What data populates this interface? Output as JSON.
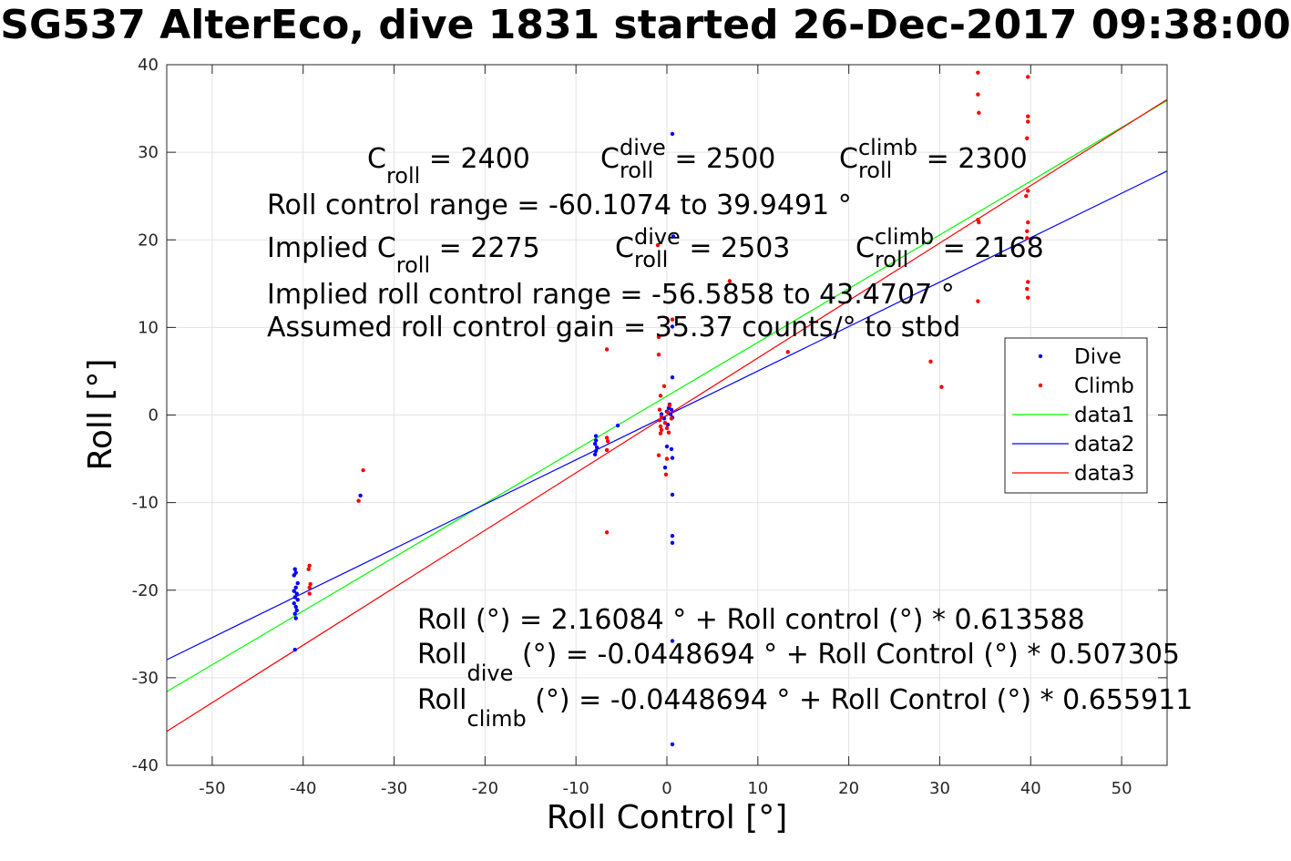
{
  "chart_data": {
    "type": "scatter",
    "title": "SG537 AlterEco, dive 1831 started 26-Dec-2017 09:38:00",
    "xlabel": "Roll Control [°]",
    "ylabel": "Roll [°]",
    "xlim": [
      -55,
      55
    ],
    "ylim": [
      -40,
      40
    ],
    "xticks": [
      -50,
      -40,
      -30,
      -20,
      -10,
      0,
      10,
      20,
      30,
      40,
      50
    ],
    "yticks": [
      -40,
      -30,
      -20,
      -10,
      0,
      10,
      20,
      30,
      40
    ],
    "grid": true,
    "legend_position": "east",
    "series": [
      {
        "name": "Dive",
        "kind": "points",
        "color": "#0000ff",
        "points": [
          [
            -40.9,
            -17.6
          ],
          [
            -40.8,
            -18.0
          ],
          [
            -41.0,
            -18.3
          ],
          [
            -40.6,
            -19.2
          ],
          [
            -40.8,
            -19.7
          ],
          [
            -41.0,
            -20.1
          ],
          [
            -40.7,
            -20.4
          ],
          [
            -40.9,
            -20.8
          ],
          [
            -40.6,
            -21.1
          ],
          [
            -41.0,
            -21.5
          ],
          [
            -40.8,
            -21.9
          ],
          [
            -40.7,
            -22.3
          ],
          [
            -40.9,
            -22.7
          ],
          [
            -40.8,
            -23.2
          ],
          [
            -40.9,
            -26.8
          ],
          [
            -33.7,
            -9.2
          ],
          [
            -7.8,
            -2.4
          ],
          [
            -7.8,
            -2.9
          ],
          [
            -7.9,
            -3.3
          ],
          [
            -7.7,
            -3.7
          ],
          [
            -7.8,
            -4.1
          ],
          [
            -7.9,
            -4.5
          ],
          [
            -5.4,
            -1.2
          ],
          [
            -0.6,
            0.1
          ],
          [
            -0.3,
            -0.4
          ],
          [
            0.0,
            0.4
          ],
          [
            0.2,
            0.8
          ],
          [
            0.4,
            0.1
          ],
          [
            0.6,
            -0.3
          ],
          [
            0.3,
            1.2
          ],
          [
            0.1,
            -1.1
          ],
          [
            0.5,
            0.6
          ],
          [
            0.0,
            -3.6
          ],
          [
            0.5,
            -3.9
          ],
          [
            0.6,
            -4.9
          ],
          [
            -0.2,
            -6.0
          ],
          [
            0.6,
            -9.1
          ],
          [
            0.6,
            4.3
          ],
          [
            0.6,
            10.1
          ],
          [
            0.7,
            20.4
          ],
          [
            0.6,
            32.1
          ],
          [
            0.6,
            -13.8
          ],
          [
            0.6,
            -14.6
          ],
          [
            0.6,
            -25.8
          ],
          [
            0.6,
            -37.6
          ]
        ]
      },
      {
        "name": "Climb",
        "kind": "points",
        "color": "#ff0000",
        "points": [
          [
            -39.3,
            -17.2
          ],
          [
            -39.4,
            -17.6
          ],
          [
            -39.2,
            -19.3
          ],
          [
            -39.3,
            -19.7
          ],
          [
            -39.3,
            -20.4
          ],
          [
            -33.9,
            -9.8
          ],
          [
            -33.4,
            -6.3
          ],
          [
            -6.6,
            7.5
          ],
          [
            -6.6,
            -2.6
          ],
          [
            -6.5,
            -3.0
          ],
          [
            -6.6,
            -4.0
          ],
          [
            -6.6,
            -13.4
          ],
          [
            -1.0,
            19.4
          ],
          [
            -0.9,
            8.9
          ],
          [
            -0.9,
            6.9
          ],
          [
            -0.7,
            2.2
          ],
          [
            -0.8,
            0.6
          ],
          [
            -0.6,
            -0.2
          ],
          [
            -0.8,
            -0.6
          ],
          [
            -0.7,
            -1.3
          ],
          [
            -0.6,
            -1.7
          ],
          [
            -0.7,
            -2.1
          ],
          [
            -0.2,
            -0.9
          ],
          [
            0.0,
            -1.5
          ],
          [
            0.2,
            -2.0
          ],
          [
            0.3,
            1.1
          ],
          [
            0.5,
            -0.4
          ],
          [
            0.1,
            0.3
          ],
          [
            -0.9,
            -4.6
          ],
          [
            0.0,
            -5.0
          ],
          [
            -0.1,
            -6.8
          ],
          [
            -0.3,
            3.3
          ],
          [
            0.6,
            10.9
          ],
          [
            6.9,
            15.3
          ],
          [
            13.3,
            7.2
          ],
          [
            29.0,
            6.1
          ],
          [
            30.2,
            3.2
          ],
          [
            34.2,
            39.1
          ],
          [
            34.2,
            36.6
          ],
          [
            34.3,
            34.5
          ],
          [
            34.2,
            22.3
          ],
          [
            34.3,
            22.0
          ],
          [
            34.2,
            13.0
          ],
          [
            39.7,
            38.6
          ],
          [
            39.7,
            34.1
          ],
          [
            39.7,
            33.5
          ],
          [
            39.6,
            31.6
          ],
          [
            39.7,
            25.6
          ],
          [
            39.5,
            25.0
          ],
          [
            39.7,
            22.0
          ],
          [
            39.6,
            21.0
          ],
          [
            39.6,
            20.2
          ],
          [
            39.7,
            15.2
          ],
          [
            39.6,
            14.4
          ],
          [
            39.7,
            13.4
          ]
        ]
      },
      {
        "name": "data1",
        "kind": "line",
        "color": "#00ff00",
        "intercept": 2.16084,
        "slope": 0.613588
      },
      {
        "name": "data2",
        "kind": "line",
        "color": "#0000ff",
        "intercept": -0.0448694,
        "slope": 0.507305
      },
      {
        "name": "data3",
        "kind": "line",
        "color": "#ff0000",
        "intercept": -0.0448694,
        "slope": 0.655911
      }
    ]
  },
  "annotations": {
    "c": "C",
    "roll_sub": "roll",
    "dive_sup": "dive",
    "climb_sup": "climb",
    "c_roll_value": " = 2400",
    "c_roll_dive_value": " = 2500",
    "c_roll_climb_value": " = 2300",
    "range_line": "Roll control range = -60.1074 to 39.9491 °",
    "implied_prefix": "Implied C",
    "implied_c_roll_value": " = 2275",
    "implied_c_roll_dive_value": " = 2503",
    "implied_c_roll_climb_value": " = 2168",
    "implied_range_line": "Implied roll control range = -56.5858 to 43.4707 °",
    "gain_line": "Assumed roll control gain = 35.37 counts/° to stbd",
    "fit_line": "Roll (°) = 2.16084 ° + Roll control (°) * 0.613588",
    "roll_word": "Roll",
    "dive_sub": "dive",
    "climb_sub": "climb",
    "fit_dive_rest": " (°) = -0.0448694 ° + Roll Control (°) * 0.507305",
    "fit_climb_rest": " (°) = -0.0448694 ° + Roll Control (°) * 0.655911"
  }
}
